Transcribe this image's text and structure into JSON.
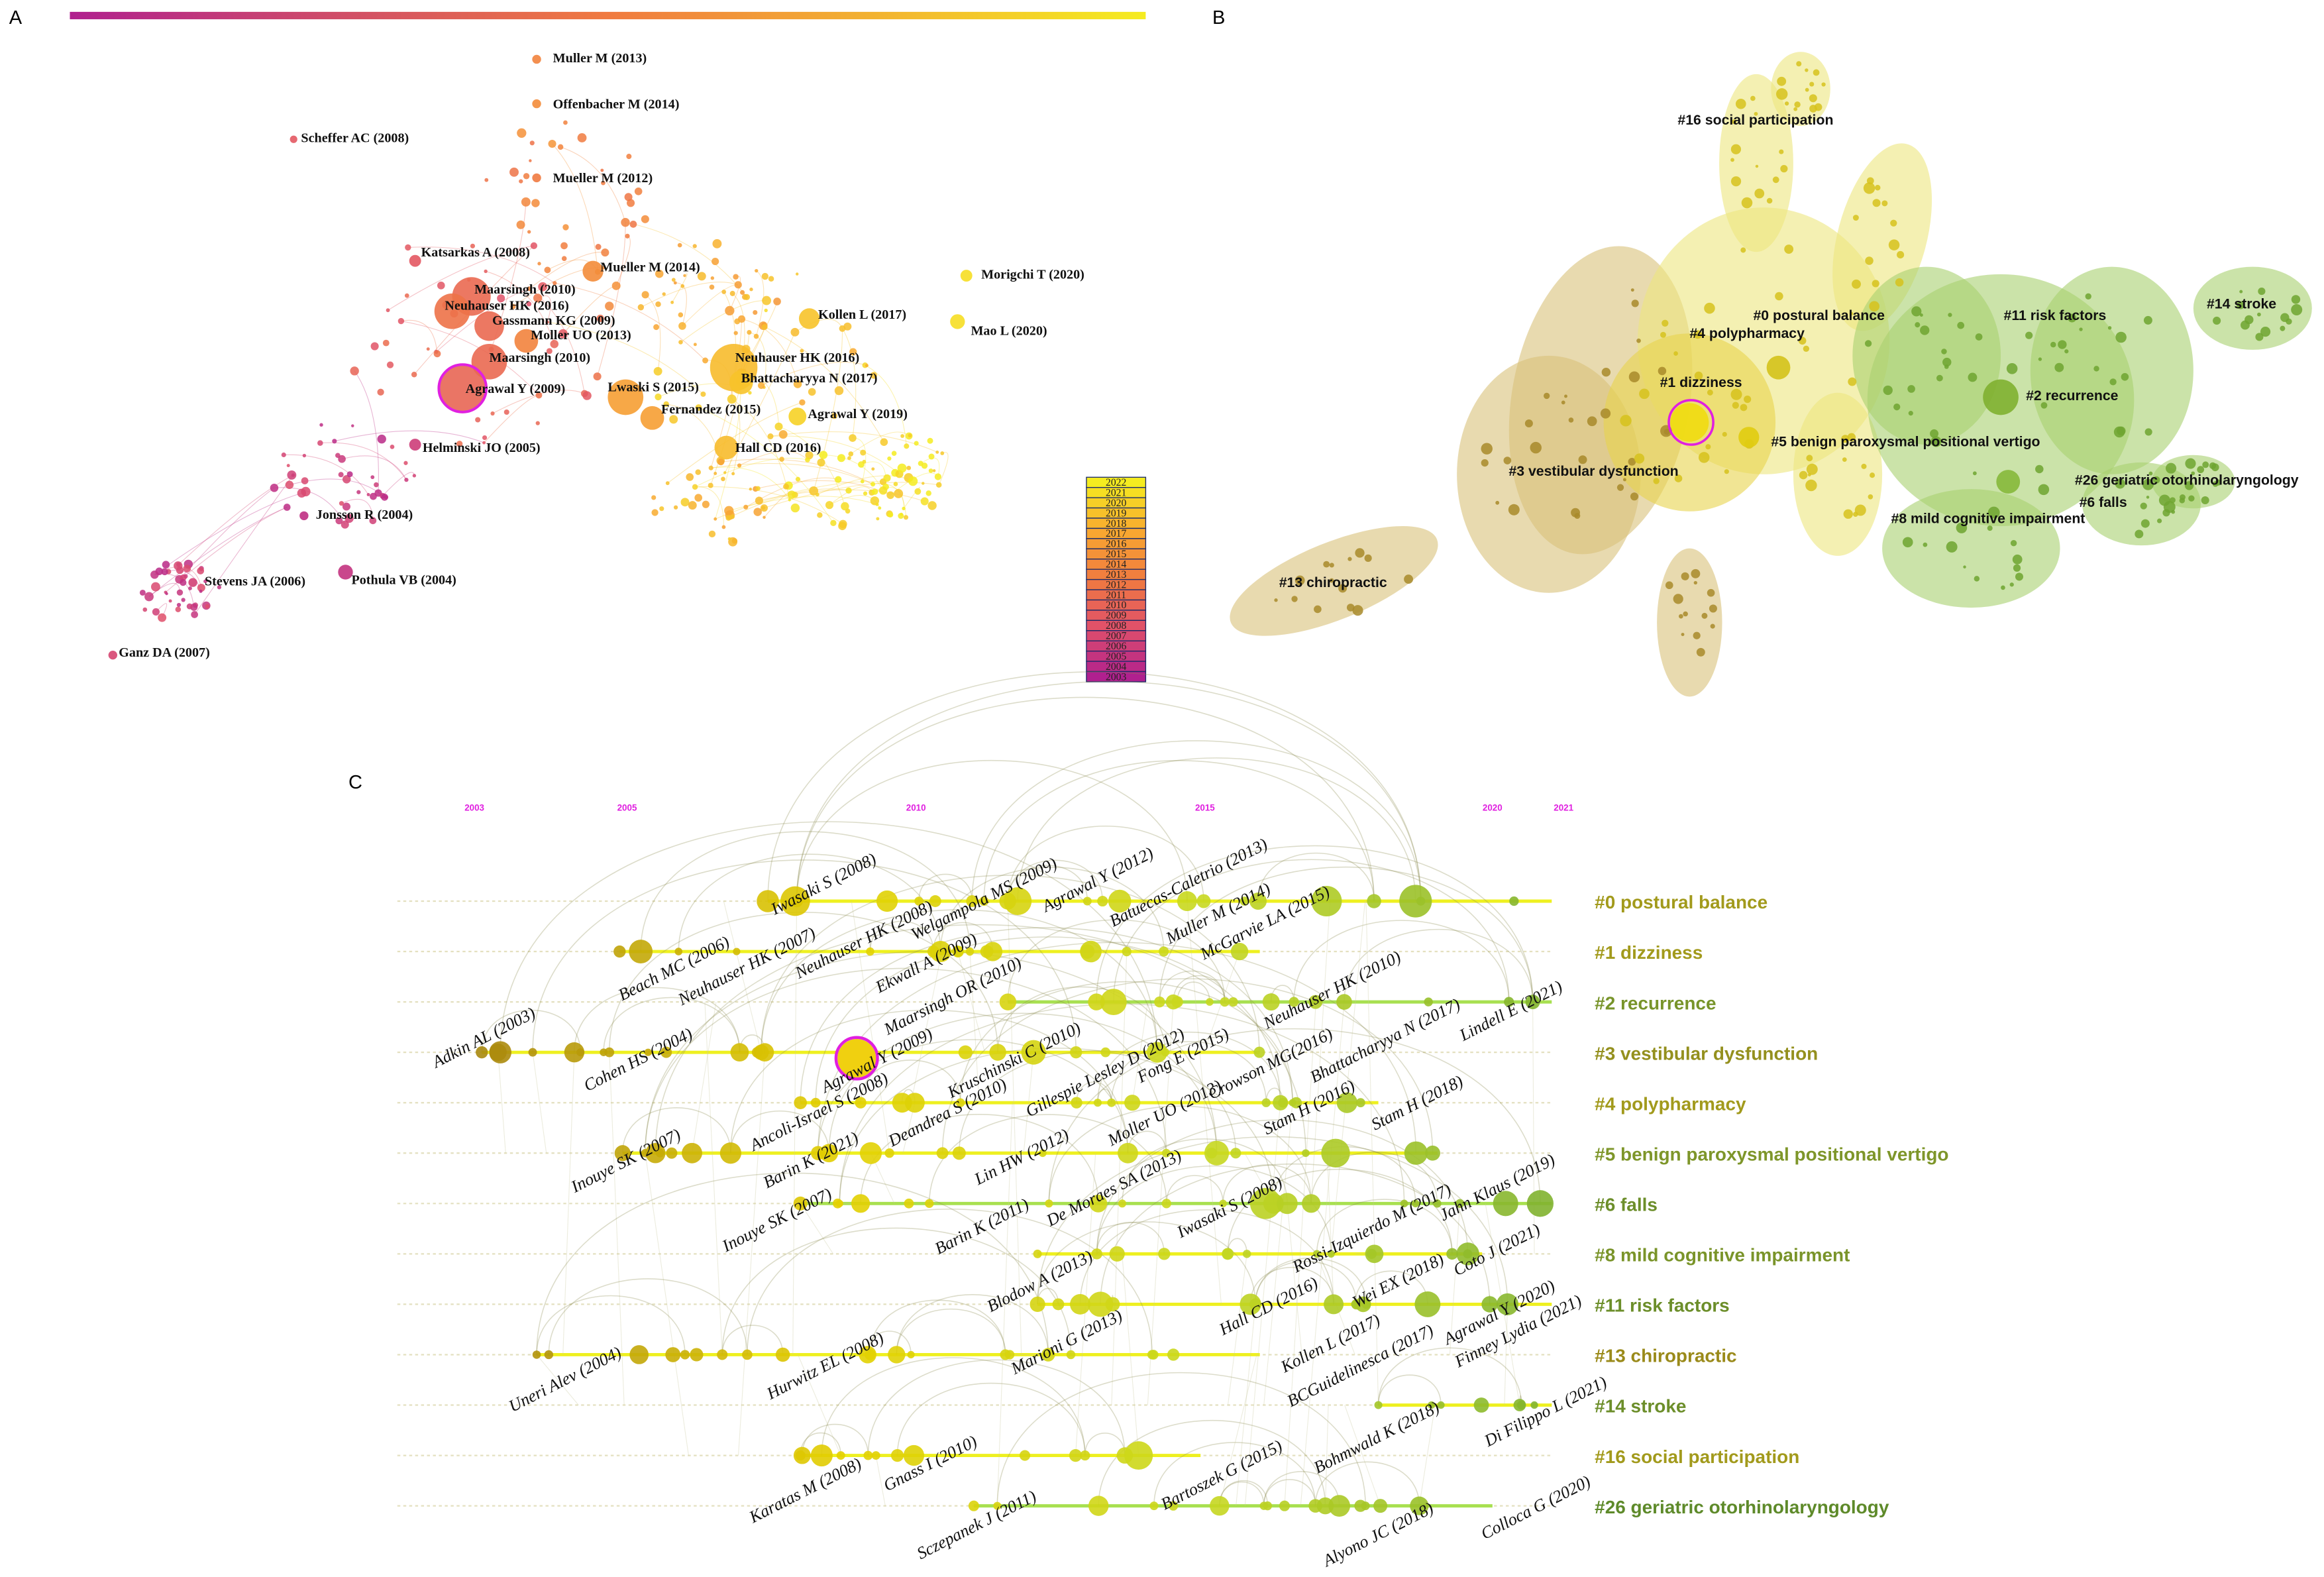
{
  "panels": {
    "a": "A",
    "b": "B",
    "c": "C"
  },
  "colors": {
    "timeline_start": "#b0208f",
    "timeline_end": "#f5ec20",
    "highlight_ring": "#e020e0",
    "cluster_tan": "#d8c27a",
    "cluster_yellow": "#ece67e",
    "cluster_green": "#a9d06f",
    "year_label": "#e020e0"
  },
  "panel_a": {
    "legend_years": [
      "2022",
      "2021",
      "2020",
      "2019",
      "2018",
      "2017",
      "2016",
      "2015",
      "2014",
      "2013",
      "2012",
      "2011",
      "2010",
      "2009",
      "2008",
      "2007",
      "2006",
      "2005",
      "2004",
      "2003"
    ],
    "labels": [
      "Muller M (2013)",
      "Offenbacher M (2014)",
      "Scheffer AC (2008)",
      "Mueller M (2012)",
      "Katsarkas A (2008)",
      "Mueller M (2014)",
      "Maarsingh (2010)",
      "Neuhauser HK (2016)",
      "Gassmann KG (2009)",
      "Moller UO  (2013)",
      "Maarsingh (2010)",
      "Agrawal Y (2009)",
      "Lwaski S (2015)",
      "Fernandez (2015)",
      "Morigchi T (2020)",
      "Kollen L (2017)",
      "Mao L (2020)",
      "Neuhauser HK (2016)",
      "Bhattacharyya N (2017)",
      "Agrawal Y (2019)",
      "Hall CD (2016)",
      "Helminski JO (2005)",
      "Jonsson R (2004)",
      "Stevens JA (2006)",
      "Pothula VB (2004)",
      "Ganz DA (2007)"
    ]
  },
  "panel_b": {
    "clusters": [
      "#16 social participation",
      "#0 postural balance",
      "#11 risk factors",
      "#14 stroke",
      "#4 polypharmacy",
      "#1 dizziness",
      "#2 recurrence",
      "#5 benign paroxysmal positional vertigo",
      "#3 vestibular dysfunction",
      "#26 geriatric otorhinolaryngology",
      "#6 falls",
      "#8 mild cognitive impairment",
      "#13 chiropractic"
    ]
  },
  "panel_c": {
    "years": [
      "2003",
      "2005",
      "2010",
      "2015",
      "2020",
      "2021"
    ],
    "clusters": [
      {
        "label": "#0 postural balance",
        "color": "#a29a1c"
      },
      {
        "label": "#1 dizziness",
        "color": "#a29a1c"
      },
      {
        "label": "#2 recurrence",
        "color": "#78942a"
      },
      {
        "label": "#3 vestibular dysfunction",
        "color": "#94901e"
      },
      {
        "label": "#4 polypharmacy",
        "color": "#a29a1c"
      },
      {
        "label": "#5 benign paroxysmal positional vertigo",
        "color": "#7e962a"
      },
      {
        "label": "#6 falls",
        "color": "#6c8e2a"
      },
      {
        "label": "#8 mild cognitive impairment",
        "color": "#7a942a"
      },
      {
        "label": "#11 risk factors",
        "color": "#6c8e2a"
      },
      {
        "label": "#13 chiropractic",
        "color": "#9a8a1a"
      },
      {
        "label": "#14 stroke",
        "color": "#6c8e2a"
      },
      {
        "label": "#16 social participation",
        "color": "#a29a1c"
      },
      {
        "label": "#26 geriatric otorhinolaryngology",
        "color": "#5e8a2a"
      }
    ],
    "node_labels": [
      "Iwasaki S (2008)",
      "Beach MC (2006)",
      "Neuhauser HK (2007)",
      "Neuhauser HK (2008)",
      "Welgampola MS (2009)",
      "Agrawal Y (2012)",
      "Batuecas-Caletrio (2013)",
      "Muller M (2014)",
      "McGarvie LA (2015)",
      "Ekwall A (2009)",
      "Maarsingh OR (2010)",
      "Adkin AL (2003)",
      "Cohen HS (2004)",
      "Agrawal Y (2009)",
      "Kruschinski C (2010)",
      "Gillespie Lesley D (2012)",
      "Fong E (2015)",
      "Crowson MG(2016)",
      "Neuhauser HK (2010)",
      "Bhattacharyya N (2017)",
      "Lindell E (2021)",
      "Ancoli-Israel S (2008)",
      "Deandrea S (2010)",
      "Moller UO (2013)",
      "Stam H (2016)",
      "Stam H (2018)",
      "Inouye SK (2007)",
      "Barin K (2021)",
      "Lin HW (2012)",
      "De Moraes SA (2013)",
      "Iwasaki S (2008)",
      "Rossi-Izquierdo M (2017)",
      "Jahn Klaus (2019)",
      "Inouye SK (2007)",
      "Barin K (2011)",
      "Blodow A (2013)",
      "Hall CD (2016)",
      "Wei EX (2018)",
      "Coto J (2021)",
      "Agrawal Y (2020)",
      "Uneri Alev (2004)",
      "Hurwitz EL (2008)",
      "Marioni G (2013)",
      "Kollen L (2017)",
      "BCGuidelinesca (2017)",
      "Finney Lydia (2021)",
      "Bohmwald K (2018)",
      "Di Filippo L (2021)",
      "Karatas M (2008)",
      "Gnass I (2010)",
      "Bartoszek G (2015)",
      "Sczepanek J (2011)",
      "Alyono JC (2018)",
      "Colloca G (2020)"
    ]
  }
}
